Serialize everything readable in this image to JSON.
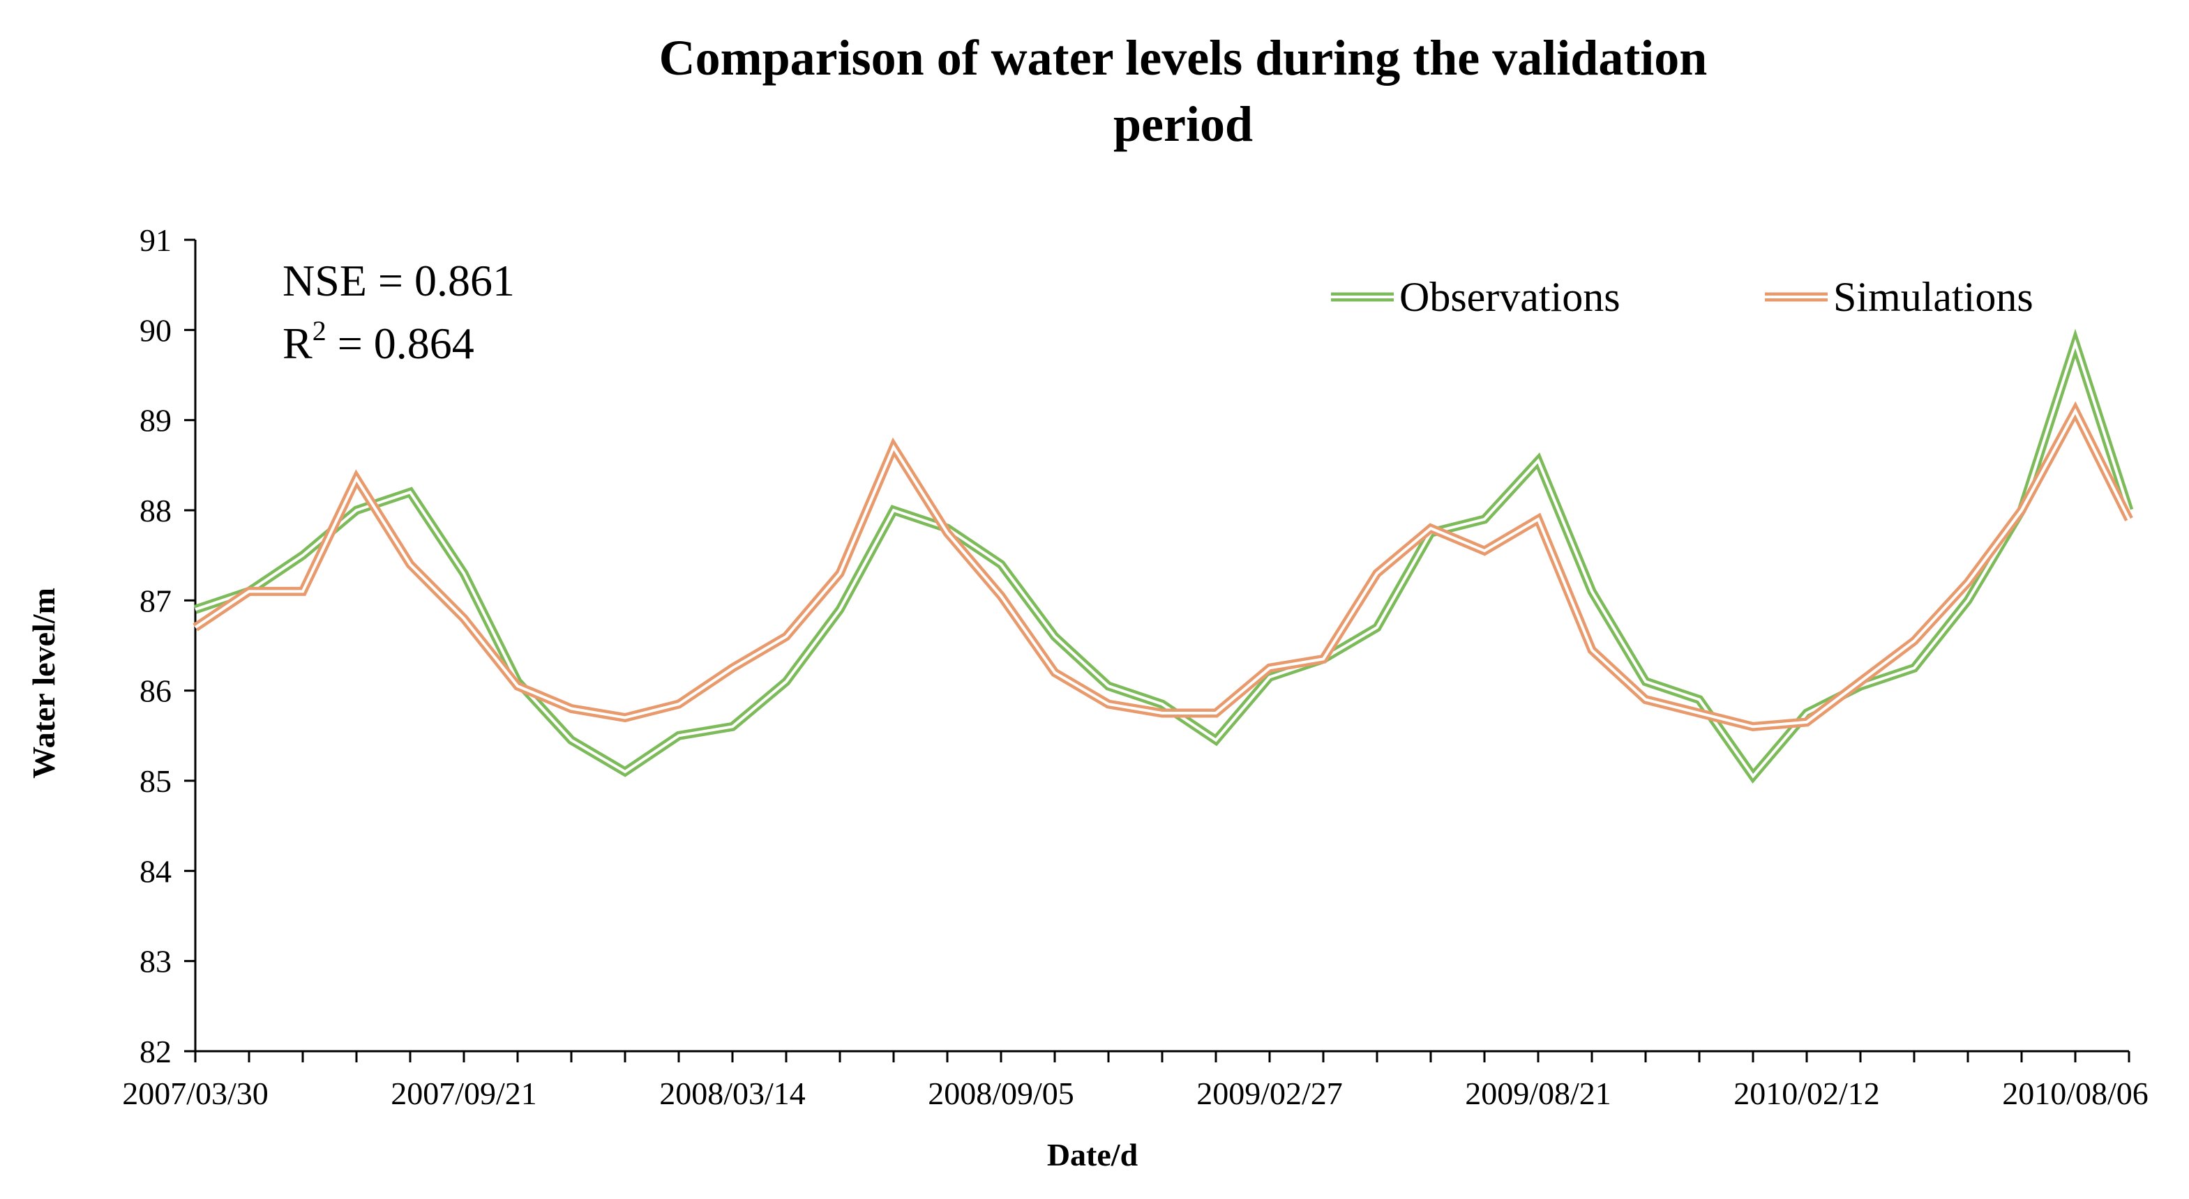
{
  "chart_data": {
    "type": "line",
    "title_line1": "Comparison of water levels during the validation",
    "title_line2": "period",
    "xlabel": "Date/d",
    "ylabel": "Water level/m",
    "ylim": [
      82,
      91
    ],
    "yticks": [
      "82",
      "83",
      "84",
      "85",
      "86",
      "87",
      "88",
      "89",
      "90",
      "91"
    ],
    "xtick_labels": [
      "2007/03/30",
      "2007/09/21",
      "2008/03/14",
      "2008/09/05",
      "2009/02/27",
      "2009/08/21",
      "2010/02/12",
      "2010/08/06"
    ],
    "n_points": 37,
    "stats": {
      "nse": "NSE = 0.861",
      "r_prefix": "R",
      "r_sup": "2",
      "r_suffix": " = 0.864"
    },
    "series": [
      {
        "name": "Observations",
        "color": "#7dbb5a",
        "values": [
          86.9,
          87.1,
          87.5,
          88.0,
          88.2,
          87.3,
          86.1,
          85.45,
          85.1,
          85.5,
          85.6,
          86.1,
          86.9,
          88.0,
          87.8,
          87.4,
          86.6,
          86.05,
          85.85,
          85.45,
          86.15,
          86.35,
          86.7,
          87.75,
          87.9,
          88.55,
          87.1,
          86.1,
          85.9,
          85.05,
          85.75,
          86.05,
          86.25,
          87.0,
          88.0,
          89.85,
          88.0
        ]
      },
      {
        "name": "Simulations",
        "color": "#e99a6c",
        "values": [
          86.7,
          87.1,
          87.1,
          88.35,
          87.4,
          86.8,
          86.05,
          85.8,
          85.7,
          85.85,
          86.25,
          86.6,
          87.3,
          88.7,
          87.75,
          87.05,
          86.2,
          85.85,
          85.75,
          85.75,
          86.25,
          86.35,
          87.3,
          87.8,
          87.55,
          87.9,
          86.45,
          85.9,
          85.75,
          85.6,
          85.65,
          86.1,
          86.55,
          87.2,
          88.0,
          89.1,
          87.9
        ]
      }
    ],
    "legend_position": "top-right"
  }
}
